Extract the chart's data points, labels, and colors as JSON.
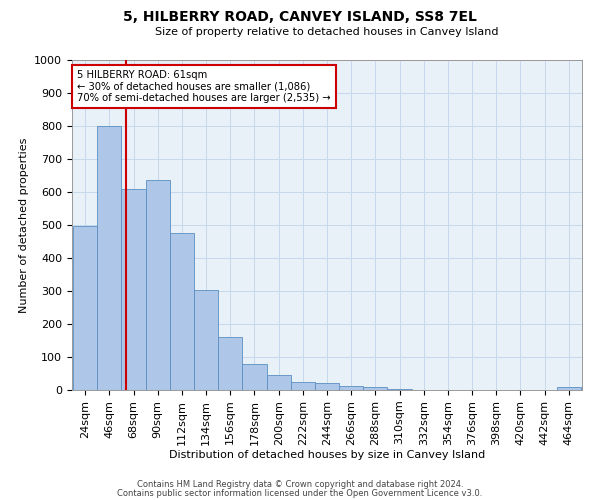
{
  "title": "5, HILBERRY ROAD, CANVEY ISLAND, SS8 7EL",
  "subtitle": "Size of property relative to detached houses in Canvey Island",
  "xlabel": "Distribution of detached houses by size in Canvey Island",
  "ylabel": "Number of detached properties",
  "footnote1": "Contains HM Land Registry data © Crown copyright and database right 2024.",
  "footnote2": "Contains public sector information licensed under the Open Government Licence v3.0.",
  "bar_labels": [
    "24sqm",
    "46sqm",
    "68sqm",
    "90sqm",
    "112sqm",
    "134sqm",
    "156sqm",
    "178sqm",
    "200sqm",
    "222sqm",
    "244sqm",
    "266sqm",
    "288sqm",
    "310sqm",
    "332sqm",
    "354sqm",
    "376sqm",
    "398sqm",
    "420sqm",
    "442sqm",
    "464sqm"
  ],
  "bar_values": [
    497,
    800,
    610,
    635,
    475,
    302,
    160,
    78,
    45,
    25,
    20,
    13,
    8,
    3,
    1,
    1,
    1,
    1,
    0,
    0,
    8
  ],
  "bar_color": "#aec6e8",
  "bar_edge_color": "#5a8fc2",
  "property_line_x": 61,
  "property_line_label": "5 HILBERRY ROAD: 61sqm",
  "annotation_line1": "← 30% of detached houses are smaller (1,086)",
  "annotation_line2": "70% of semi-detached houses are larger (2,535) →",
  "annotation_box_color": "#ffffff",
  "annotation_box_edge": "#cc0000",
  "red_line_color": "#cc0000",
  "ylim": [
    0,
    1000
  ],
  "yticks": [
    0,
    100,
    200,
    300,
    400,
    500,
    600,
    700,
    800,
    900,
    1000
  ],
  "grid_color": "#c8d8ec",
  "bg_color": "#e8f0f8"
}
